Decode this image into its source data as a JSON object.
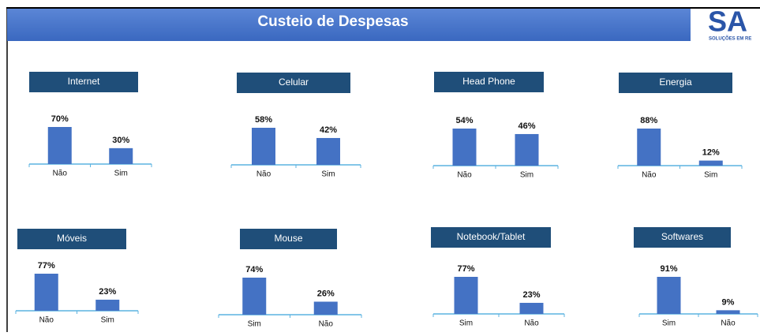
{
  "header": {
    "title": "Custeio de Despesas",
    "logo": "SA",
    "logo_subtitle": "SOLUÇÕES EM RE"
  },
  "chart_data": [
    {
      "type": "bar",
      "title": "Internet",
      "categories": [
        "Não",
        "Sim"
      ],
      "values": [
        70,
        30
      ],
      "value_labels": [
        "70%",
        "30%"
      ],
      "color": "#4472c4"
    },
    {
      "type": "bar",
      "title": "Celular",
      "categories": [
        "Não",
        "Sim"
      ],
      "values": [
        58,
        42
      ],
      "value_labels": [
        "58%",
        "42%"
      ],
      "color": "#4472c4"
    },
    {
      "type": "bar",
      "title": "Head Phone",
      "categories": [
        "Não",
        "Sim"
      ],
      "values": [
        54,
        46
      ],
      "value_labels": [
        "54%",
        "46%"
      ],
      "color": "#4472c4"
    },
    {
      "type": "bar",
      "title": "Energia",
      "categories": [
        "Não",
        "Sim"
      ],
      "values": [
        88,
        12
      ],
      "value_labels": [
        "88%",
        "12%"
      ],
      "color": "#4472c4"
    },
    {
      "type": "bar",
      "title": "Móveis",
      "categories": [
        "Não",
        "Sim"
      ],
      "values": [
        77,
        23
      ],
      "value_labels": [
        "77%",
        "23%"
      ],
      "color": "#4472c4"
    },
    {
      "type": "bar",
      "title": "Mouse",
      "categories": [
        "Sim",
        "Não"
      ],
      "values": [
        74,
        26
      ],
      "value_labels": [
        "74%",
        "26%"
      ],
      "color": "#4472c4"
    },
    {
      "type": "bar",
      "title": "Notebook/Tablet",
      "categories": [
        "Sim",
        "Não"
      ],
      "values": [
        77,
        23
      ],
      "value_labels": [
        "77%",
        "23%"
      ],
      "color": "#4472c4"
    },
    {
      "type": "bar",
      "title": "Softwares",
      "categories": [
        "Sim",
        "Não"
      ],
      "values": [
        91,
        9
      ],
      "value_labels": [
        "91%",
        "9%"
      ],
      "color": "#4472c4"
    }
  ]
}
